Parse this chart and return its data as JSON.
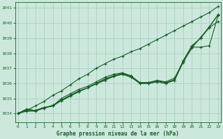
{
  "title": "Graphe pression niveau de la mer (hPa)",
  "bg_color": "#cce8dc",
  "grid_color": "#aacfbe",
  "line_color": "#1a5c2a",
  "x_ticks": [
    0,
    1,
    2,
    3,
    4,
    5,
    6,
    7,
    8,
    9,
    10,
    11,
    12,
    13,
    14,
    15,
    16,
    17,
    18,
    19,
    20,
    21,
    22,
    23
  ],
  "ylim": [
    1033.4,
    1041.4
  ],
  "yticks": [
    1034,
    1035,
    1036,
    1037,
    1038,
    1039,
    1040,
    1041
  ],
  "series": [
    [
      1034.0,
      1034.2,
      1034.2,
      1034.4,
      1034.5,
      1034.9,
      1035.2,
      1035.5,
      1035.7,
      1036.0,
      1036.3,
      1036.5,
      1036.65,
      1036.5,
      1036.0,
      1036.0,
      1036.1,
      1036.0,
      1036.2,
      1037.5,
      1038.4,
      1038.4,
      1038.5,
      1040.5
    ],
    [
      1034.0,
      1034.25,
      1034.2,
      1034.4,
      1034.5,
      1035.0,
      1035.3,
      1035.6,
      1035.8,
      1036.1,
      1036.4,
      1036.6,
      1036.7,
      1036.5,
      1036.05,
      1036.05,
      1036.15,
      1036.05,
      1036.25,
      1037.5,
      1038.5,
      1039.0,
      1039.7,
      1040.1
    ],
    [
      1034.0,
      1034.3,
      1034.2,
      1034.35,
      1034.5,
      1034.85,
      1035.15,
      1035.45,
      1035.7,
      1036.0,
      1036.25,
      1036.5,
      1036.65,
      1036.45,
      1036.05,
      1036.05,
      1036.2,
      1036.1,
      1036.35,
      1037.45,
      1038.45,
      1039.0,
      1039.75,
      1040.55
    ],
    [
      1034.0,
      1034.15,
      1034.15,
      1034.35,
      1034.55,
      1034.85,
      1035.15,
      1035.45,
      1035.7,
      1035.95,
      1036.2,
      1036.45,
      1036.6,
      1036.4,
      1036.0,
      1036.0,
      1036.1,
      1036.0,
      1036.2,
      1037.4,
      1038.35,
      1039.05,
      1039.75,
      1040.55
    ],
    [
      1034.0,
      1034.2,
      1034.5,
      1034.8,
      1035.2,
      1035.5,
      1035.9,
      1036.3,
      1036.6,
      1037.0,
      1037.3,
      1037.6,
      1037.8,
      1038.1,
      1038.3,
      1038.6,
      1038.9,
      1039.2,
      1039.5,
      1039.8,
      1040.1,
      1040.4,
      1040.7,
      1041.1
    ]
  ],
  "marker": "+",
  "marker_size": 3,
  "linewidth": 0.8
}
